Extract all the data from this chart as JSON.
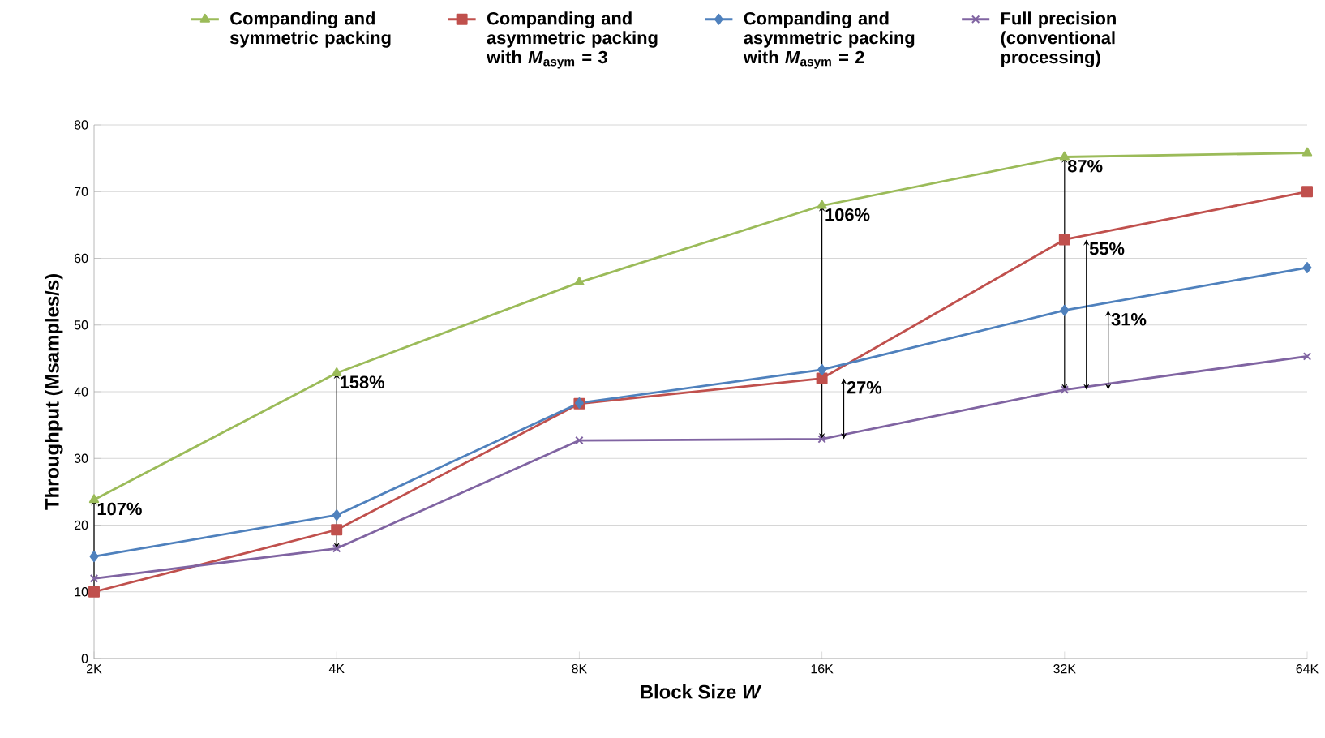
{
  "chart_data": {
    "type": "line",
    "xlabel": "Block Size *W*",
    "ylabel": "Throughput (Msamples/s)",
    "categories": [
      "2K",
      "4K",
      "8K",
      "16K",
      "32K",
      "64K"
    ],
    "ylim": [
      0,
      80
    ],
    "yticks": [
      0,
      10,
      20,
      30,
      40,
      50,
      60,
      70,
      80
    ],
    "grid": "y",
    "legend": "top",
    "series": [
      {
        "name": "Companding and symmetric packing",
        "color": "#9bbb59",
        "marker": "triangle",
        "values": [
          23.8,
          42.8,
          56.4,
          67.9,
          75.2,
          75.8
        ]
      },
      {
        "name": "Companding and asymmetric packing with *M*$_{asym}$ = 3",
        "color": "#c0504d",
        "marker": "square",
        "values": [
          10,
          19.3,
          38.2,
          42,
          62.8,
          70
        ]
      },
      {
        "name": "Companding and asymmetric packing with *M*$_{asym}$ = 2",
        "color": "#4f81bd",
        "marker": "diamond",
        "values": [
          15.3,
          21.5,
          38.3,
          43.3,
          52.2,
          58.6
        ]
      },
      {
        "name": "Full precision (conventional processing)",
        "color": "#8064a2",
        "marker": "cross",
        "values": [
          12,
          16.5,
          32.7,
          32.9,
          40.3,
          45.3
        ]
      }
    ],
    "annotations": [
      {
        "text": "107%",
        "x": "2K",
        "y": 23.8
      },
      {
        "text": "158%",
        "x": "4K",
        "y": 42.8
      },
      {
        "text": "106%",
        "x": "16K",
        "y": 67.9
      },
      {
        "text": "27%",
        "x": "16K",
        "y": 42
      },
      {
        "text": "87%",
        "x": "32K",
        "y": 75.2
      },
      {
        "text": "55%",
        "x": "32K",
        "y": 62.8
      },
      {
        "text": "31%",
        "x": "32K",
        "y": 52.2
      }
    ]
  }
}
